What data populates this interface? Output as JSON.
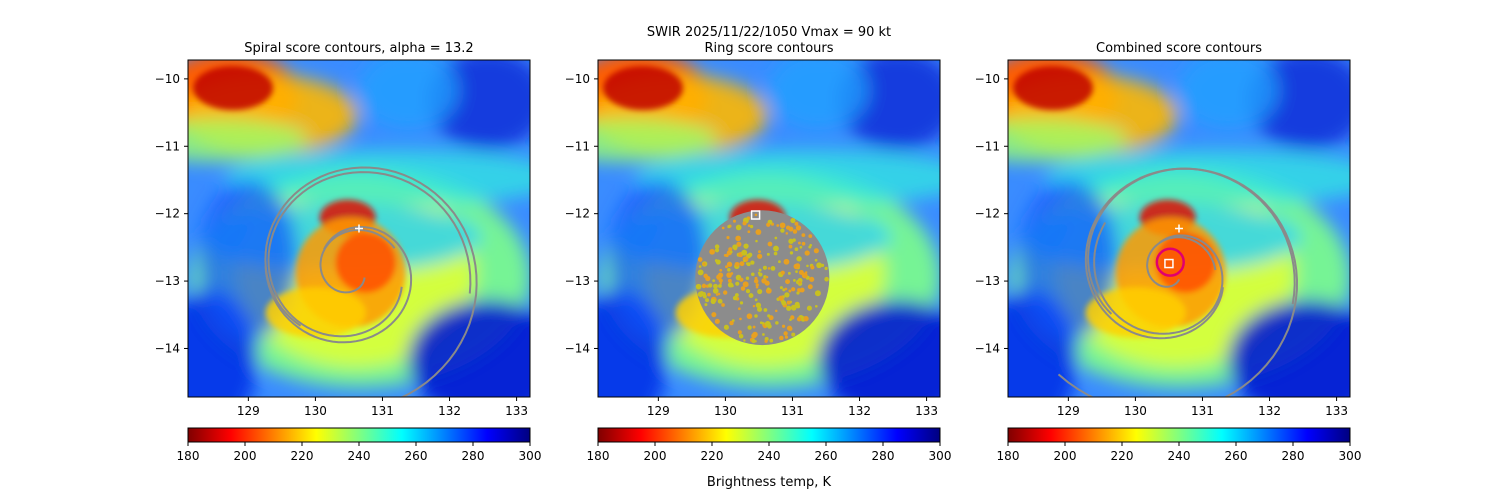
{
  "suptitle": "SWIR  2025/11/22/1050    Vmax = 90 kt",
  "colorbar": {
    "label": "Brightness temp, K",
    "range": [
      180,
      300
    ],
    "ticks": [
      180,
      200,
      220,
      240,
      260,
      280,
      300
    ],
    "colormap": "jet_r",
    "stops": [
      "#800000",
      "#ff0000",
      "#ff8000",
      "#ffff00",
      "#80ff80",
      "#00ffff",
      "#0080ff",
      "#0000ff",
      "#000080"
    ]
  },
  "chart_data": [
    {
      "type": "heatmap",
      "title": "Spiral score contours, alpha = 13.2",
      "x_ticks": [
        129,
        130,
        131,
        132,
        133
      ],
      "y_ticks": [
        -10,
        -11,
        -12,
        -13,
        -14
      ],
      "xlim": [
        128.1,
        133.2
      ],
      "ylim": [
        -14.72,
        -9.72
      ],
      "overlay": "spiral contours",
      "markers": [
        {
          "symbol": "plus",
          "x": 130.65,
          "y": -12.22
        }
      ]
    },
    {
      "type": "heatmap",
      "title": "Ring score contours",
      "x_ticks": [
        129,
        130,
        131,
        132,
        133
      ],
      "y_ticks": [
        -10,
        -11,
        -12,
        -13,
        -14
      ],
      "xlim": [
        128.1,
        133.2
      ],
      "ylim": [
        -14.72,
        -9.72
      ],
      "overlay": "ring score disk",
      "ring_disk": {
        "center_lon": 130.55,
        "center_lat": -12.95,
        "radius_deg": 1.0
      },
      "markers": [
        {
          "symbol": "square",
          "x": 130.45,
          "y": -12.02
        }
      ]
    },
    {
      "type": "heatmap",
      "title": "Combined score contours",
      "x_ticks": [
        129,
        130,
        131,
        132,
        133
      ],
      "y_ticks": [
        -10,
        -11,
        -12,
        -13,
        -14
      ],
      "xlim": [
        128.1,
        133.2
      ],
      "ylim": [
        -14.72,
        -9.72
      ],
      "overlay": "combined contours",
      "markers": [
        {
          "symbol": "plus",
          "x": 130.65,
          "y": -12.22
        },
        {
          "symbol": "square",
          "x": 130.5,
          "y": -12.74
        },
        {
          "symbol": "circle",
          "x": 130.52,
          "y": -12.72,
          "radius_deg": 0.2
        }
      ]
    }
  ]
}
